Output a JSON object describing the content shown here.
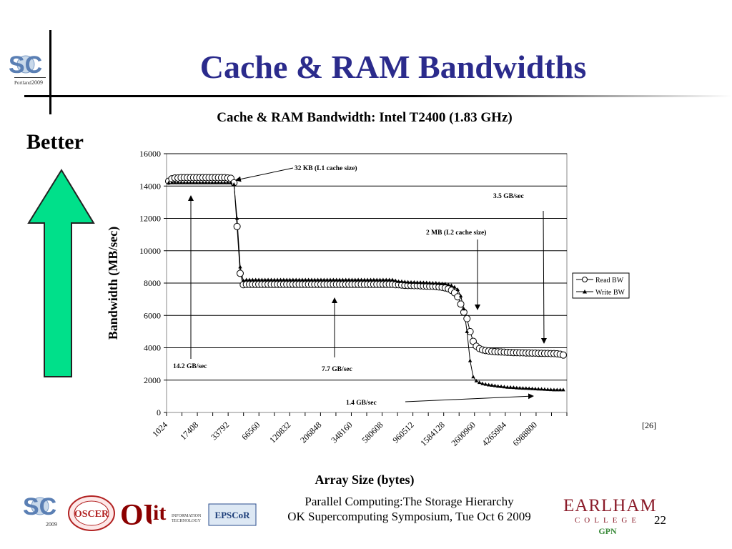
{
  "slide": {
    "title": "Cache & RAM Bandwidths",
    "better_label": "Better",
    "citation": "[26]",
    "footer_line1": "Parallel Computing:The Storage Hierarchy",
    "footer_line2": "OK Supercomputing Symposium, Tue Oct 6 2009",
    "slide_number": "22",
    "colors": {
      "title": "#2b2b8c",
      "arrow": "#00e08a",
      "earlham": "#8b1c2a"
    },
    "logos": {
      "sc": "SC",
      "oscer": "OSCER",
      "ou": "OU",
      "it": "it",
      "it_text": "INFORMATION TECHNOLOGY",
      "epscor": "EPSCoR",
      "earlham_name": "EARLHAM",
      "earlham_college": "COLLEGE",
      "gpn": "GPN"
    }
  },
  "chart_data": {
    "type": "line",
    "title": "Cache & RAM Bandwidth: Intel T2400 (1.83 GHz)",
    "xlabel": "Array Size (bytes)",
    "ylabel": "Bandwidth (MB/sec)",
    "ylim": [
      0,
      16000
    ],
    "yticks": [
      0,
      2000,
      4000,
      6000,
      8000,
      10000,
      12000,
      14000,
      16000
    ],
    "xticks": [
      "1024",
      "17408",
      "33792",
      "66560",
      "120832",
      "206848",
      "348160",
      "580608",
      "960512",
      "1584128",
      "2600960",
      "4265984",
      "6988800"
    ],
    "grid": true,
    "legend_position": "right",
    "series": [
      {
        "name": "Read BW",
        "marker": "circle",
        "values": [
          14300,
          14450,
          14500,
          14500,
          14520,
          14520,
          14520,
          14520,
          14520,
          14520,
          14520,
          14520,
          14520,
          14520,
          14520,
          14520,
          14520,
          14520,
          14520,
          14500,
          14480,
          14200,
          11500,
          8600,
          7900,
          7920,
          7920,
          7920,
          7920,
          7920,
          7920,
          7920,
          7920,
          7920,
          7920,
          7920,
          7920,
          7920,
          7920,
          7920,
          7920,
          7920,
          7920,
          7920,
          7920,
          7920,
          7920,
          7920,
          7920,
          7920,
          7920,
          7920,
          7920,
          7920,
          7920,
          7920,
          7920,
          7920,
          7920,
          7920,
          7920,
          7920,
          7920,
          7920,
          7920,
          7920,
          7920,
          7920,
          7920,
          7920,
          7920,
          7920,
          7920,
          7900,
          7900,
          7880,
          7860,
          7850,
          7850,
          7840,
          7840,
          7830,
          7820,
          7810,
          7800,
          7800,
          7780,
          7760,
          7740,
          7700,
          7650,
          7550,
          7400,
          7150,
          6700,
          6200,
          5800,
          5000,
          4400,
          4100,
          3950,
          3870,
          3830,
          3800,
          3780,
          3760,
          3750,
          3740,
          3730,
          3720,
          3710,
          3700,
          3700,
          3690,
          3690,
          3680,
          3680,
          3670,
          3670,
          3660,
          3660,
          3650,
          3650,
          3640,
          3640,
          3630,
          3600,
          3550
        ]
      },
      {
        "name": "Write BW",
        "marker": "triangle",
        "values": [
          14200,
          14200,
          14200,
          14200,
          14200,
          14200,
          14200,
          14200,
          14200,
          14200,
          14200,
          14200,
          14200,
          14200,
          14200,
          14200,
          14200,
          14200,
          14200,
          14200,
          14200,
          14100,
          12000,
          9000,
          8150,
          8200,
          8200,
          8200,
          8200,
          8200,
          8200,
          8200,
          8200,
          8200,
          8200,
          8200,
          8200,
          8200,
          8200,
          8200,
          8200,
          8200,
          8200,
          8200,
          8200,
          8200,
          8200,
          8200,
          8200,
          8200,
          8200,
          8200,
          8200,
          8200,
          8200,
          8200,
          8200,
          8200,
          8200,
          8200,
          8200,
          8200,
          8200,
          8200,
          8200,
          8200,
          8200,
          8200,
          8200,
          8200,
          8200,
          8200,
          8200,
          8150,
          8100,
          8100,
          8080,
          8060,
          8050,
          8050,
          8040,
          8040,
          8030,
          8020,
          8010,
          8000,
          8000,
          7980,
          7960,
          7950,
          7900,
          7850,
          7750,
          7600,
          7200,
          6400,
          5000,
          3200,
          2200,
          1950,
          1850,
          1780,
          1740,
          1700,
          1680,
          1650,
          1620,
          1600,
          1580,
          1560,
          1550,
          1540,
          1520,
          1510,
          1500,
          1490,
          1480,
          1470,
          1460,
          1450,
          1440,
          1430,
          1420,
          1410,
          1400,
          1400,
          1400,
          1400
        ]
      }
    ],
    "annotations": [
      {
        "label": "32 KB (L1 cache size)"
      },
      {
        "label": "3.5 GB/sec"
      },
      {
        "label": "2 MB (L2 cache size)"
      },
      {
        "label": "14.2 GB/sec"
      },
      {
        "label": "7.7 GB/sec"
      },
      {
        "label": "1.4 GB/sec"
      }
    ]
  }
}
